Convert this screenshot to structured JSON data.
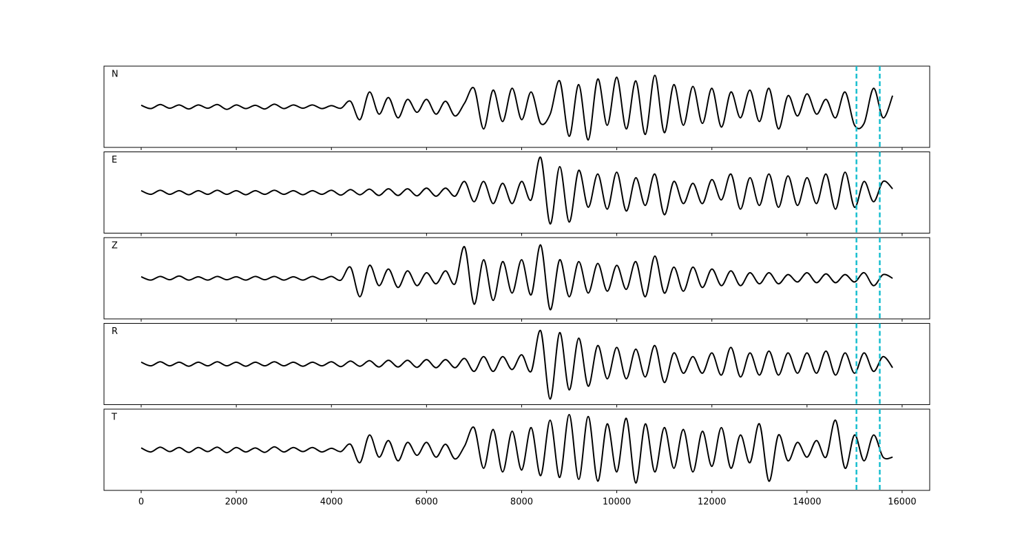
{
  "chart_data": {
    "type": "line",
    "stacked_panels": true,
    "x": [
      0,
      200,
      400,
      600,
      800,
      1000,
      1200,
      1400,
      1600,
      1800,
      2000,
      2200,
      2400,
      2600,
      2800,
      3000,
      3200,
      3400,
      3600,
      3800,
      4000,
      4200,
      4400,
      4600,
      4800,
      5000,
      5200,
      5400,
      5600,
      5800,
      6000,
      6200,
      6400,
      6600,
      6800,
      7000,
      7200,
      7400,
      7600,
      7800,
      8000,
      8200,
      8400,
      8600,
      8800,
      9000,
      9200,
      9400,
      9600,
      9800,
      10000,
      10200,
      10400,
      10600,
      10800,
      11000,
      11200,
      11400,
      11600,
      11800,
      12000,
      12200,
      12400,
      12600,
      12800,
      13000,
      13200,
      13400,
      13600,
      13800,
      14000,
      14200,
      14400,
      14600,
      14800,
      15000,
      15200,
      15400,
      15600,
      15800
    ],
    "xlim": [
      -782,
      16580
    ],
    "xticks": [
      0,
      2000,
      4000,
      6000,
      8000,
      10000,
      12000,
      14000,
      16000
    ],
    "ylim": [
      -1.1,
      1.1
    ],
    "series": [
      {
        "name": "N",
        "color": "#000000",
        "values": [
          0.04,
          -0.05,
          0.06,
          -0.04,
          0.05,
          -0.06,
          0.05,
          -0.04,
          0.06,
          -0.07,
          0.05,
          -0.05,
          0.04,
          -0.06,
          0.07,
          -0.05,
          0.05,
          -0.04,
          0.05,
          -0.05,
          0.03,
          -0.04,
          0.15,
          -0.35,
          0.4,
          -0.2,
          0.25,
          -0.3,
          0.2,
          -0.15,
          0.2,
          -0.2,
          0.15,
          -0.25,
          0.1,
          0.5,
          -0.6,
          0.45,
          -0.4,
          0.5,
          -0.35,
          0.4,
          -0.45,
          -0.2,
          0.7,
          -0.8,
          0.6,
          -0.9,
          0.75,
          -0.5,
          0.8,
          -0.6,
          0.7,
          -0.75,
          0.85,
          -0.7,
          0.6,
          -0.5,
          0.55,
          -0.45,
          0.5,
          -0.55,
          0.4,
          -0.3,
          0.45,
          -0.4,
          0.5,
          -0.6,
          0.3,
          -0.25,
          0.35,
          -0.2,
          0.2,
          -0.3,
          0.4,
          -0.5,
          -0.45,
          0.5,
          -0.3,
          0.3
        ]
      },
      {
        "name": "E",
        "color": "#000000",
        "values": [
          0.05,
          -0.05,
          0.06,
          -0.05,
          0.05,
          -0.06,
          0.05,
          -0.05,
          0.06,
          -0.05,
          0.05,
          -0.06,
          0.05,
          -0.05,
          0.06,
          -0.05,
          0.05,
          -0.06,
          0.05,
          -0.05,
          0.06,
          -0.07,
          0.08,
          -0.06,
          0.09,
          -0.08,
          0.1,
          -0.08,
          0.1,
          -0.09,
          0.12,
          -0.1,
          0.12,
          -0.1,
          0.3,
          -0.25,
          0.3,
          -0.3,
          0.25,
          -0.3,
          0.3,
          -0.2,
          0.95,
          -0.85,
          0.7,
          -0.8,
          0.6,
          -0.4,
          0.5,
          -0.45,
          0.55,
          -0.5,
          0.4,
          -0.35,
          0.5,
          -0.6,
          0.3,
          -0.3,
          0.25,
          -0.3,
          0.35,
          -0.2,
          0.5,
          -0.45,
          0.4,
          -0.35,
          0.5,
          -0.4,
          0.45,
          -0.35,
          0.4,
          -0.3,
          0.5,
          -0.45,
          0.55,
          -0.4,
          0.3,
          -0.25,
          0.3,
          0.1
        ]
      },
      {
        "name": "Z",
        "color": "#000000",
        "values": [
          0.04,
          -0.05,
          0.05,
          -0.04,
          0.06,
          -0.05,
          0.04,
          -0.05,
          0.05,
          -0.04,
          0.04,
          -0.05,
          0.05,
          -0.04,
          0.05,
          -0.05,
          0.04,
          -0.05,
          0.05,
          -0.04,
          0.05,
          -0.05,
          0.3,
          -0.5,
          0.35,
          -0.2,
          0.25,
          -0.25,
          0.2,
          -0.2,
          0.15,
          -0.15,
          0.2,
          -0.15,
          0.85,
          -0.7,
          0.5,
          -0.6,
          0.45,
          -0.4,
          0.5,
          -0.45,
          0.9,
          -0.85,
          0.5,
          -0.5,
          0.45,
          -0.4,
          0.4,
          -0.35,
          0.35,
          -0.3,
          0.45,
          -0.5,
          0.6,
          -0.4,
          0.3,
          -0.35,
          0.3,
          -0.25,
          0.25,
          -0.2,
          0.2,
          -0.2,
          0.15,
          -0.15,
          0.15,
          -0.15,
          0.1,
          -0.1,
          0.15,
          -0.12,
          0.12,
          -0.12,
          0.1,
          -0.1,
          0.15,
          -0.2,
          0.1,
          0.0
        ]
      },
      {
        "name": "R",
        "color": "#000000",
        "values": [
          0.05,
          -0.05,
          0.06,
          -0.05,
          0.05,
          -0.06,
          0.05,
          -0.05,
          0.06,
          -0.05,
          0.05,
          -0.06,
          0.05,
          -0.05,
          0.06,
          -0.05,
          0.05,
          -0.06,
          0.05,
          -0.05,
          0.06,
          -0.07,
          0.08,
          -0.06,
          0.09,
          -0.08,
          0.1,
          -0.08,
          0.1,
          -0.09,
          0.12,
          -0.1,
          0.12,
          -0.1,
          0.15,
          -0.2,
          0.2,
          -0.2,
          0.2,
          -0.15,
          0.25,
          -0.2,
          0.9,
          -0.95,
          0.85,
          -0.7,
          0.7,
          -0.6,
          0.5,
          -0.4,
          0.45,
          -0.4,
          0.4,
          -0.35,
          0.5,
          -0.5,
          0.3,
          -0.25,
          0.2,
          -0.25,
          0.3,
          -0.3,
          0.45,
          -0.35,
          0.3,
          -0.3,
          0.35,
          -0.3,
          0.3,
          -0.25,
          0.3,
          -0.25,
          0.35,
          -0.3,
          0.3,
          -0.25,
          0.3,
          -0.2,
          0.2,
          -0.1
        ]
      },
      {
        "name": "T",
        "color": "#000000",
        "values": [
          0.05,
          -0.06,
          0.07,
          -0.05,
          0.06,
          -0.07,
          0.06,
          -0.05,
          0.07,
          -0.08,
          0.06,
          -0.06,
          0.05,
          -0.07,
          0.08,
          -0.06,
          0.06,
          -0.05,
          0.06,
          -0.06,
          0.04,
          -0.05,
          0.15,
          -0.35,
          0.4,
          -0.2,
          0.25,
          -0.3,
          0.2,
          -0.15,
          0.2,
          -0.2,
          0.15,
          -0.25,
          0.1,
          0.6,
          -0.5,
          0.55,
          -0.6,
          0.5,
          -0.55,
          0.6,
          -0.7,
          0.8,
          -0.75,
          0.95,
          -0.8,
          0.9,
          -0.85,
          0.7,
          -0.6,
          0.85,
          -0.9,
          0.7,
          -0.6,
          0.6,
          -0.5,
          0.55,
          -0.6,
          0.5,
          -0.45,
          0.6,
          -0.5,
          0.4,
          -0.35,
          0.7,
          -0.85,
          0.4,
          -0.3,
          0.2,
          -0.2,
          0.25,
          -0.2,
          0.8,
          -0.5,
          0.4,
          -0.3,
          0.4,
          -0.2,
          -0.2
        ]
      }
    ],
    "vlines": [
      {
        "x": 15040,
        "color": "#17becf"
      },
      {
        "x": 15530,
        "color": "#17becf"
      }
    ]
  }
}
